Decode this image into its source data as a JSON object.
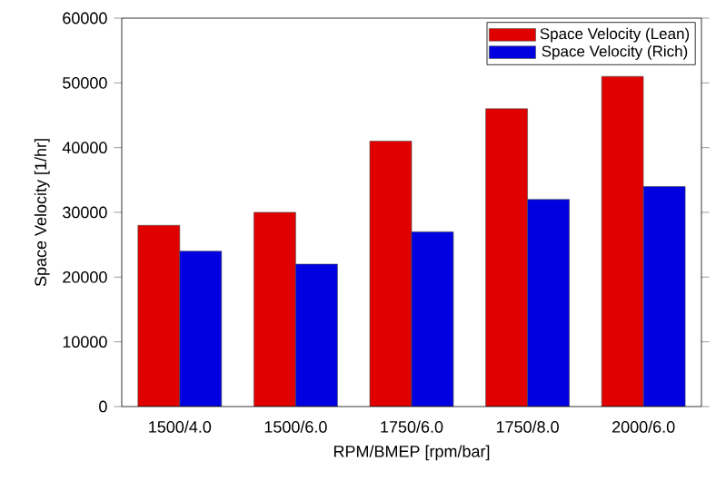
{
  "chart_data": {
    "type": "bar",
    "xlabel": "RPM/BMEP [rpm/bar]",
    "ylabel": "Space Velocity [1/hr]",
    "categories": [
      "1500/4.0",
      "1500/6.0",
      "1750/6.0",
      "1750/8.0",
      "2000/6.0"
    ],
    "series": [
      {
        "name": "Space Velocity (Lean)",
        "color": "#e00000",
        "values": [
          28000,
          30000,
          41000,
          46000,
          51000
        ]
      },
      {
        "name": "Space Velocity (Rich)",
        "color": "#0000e0",
        "values": [
          24000,
          22000,
          27000,
          32000,
          34000
        ]
      }
    ],
    "ylim": [
      0,
      60000
    ],
    "yticks": [
      0,
      10000,
      20000,
      30000,
      40000,
      50000,
      60000
    ],
    "legend": "top right",
    "grid": false
  }
}
